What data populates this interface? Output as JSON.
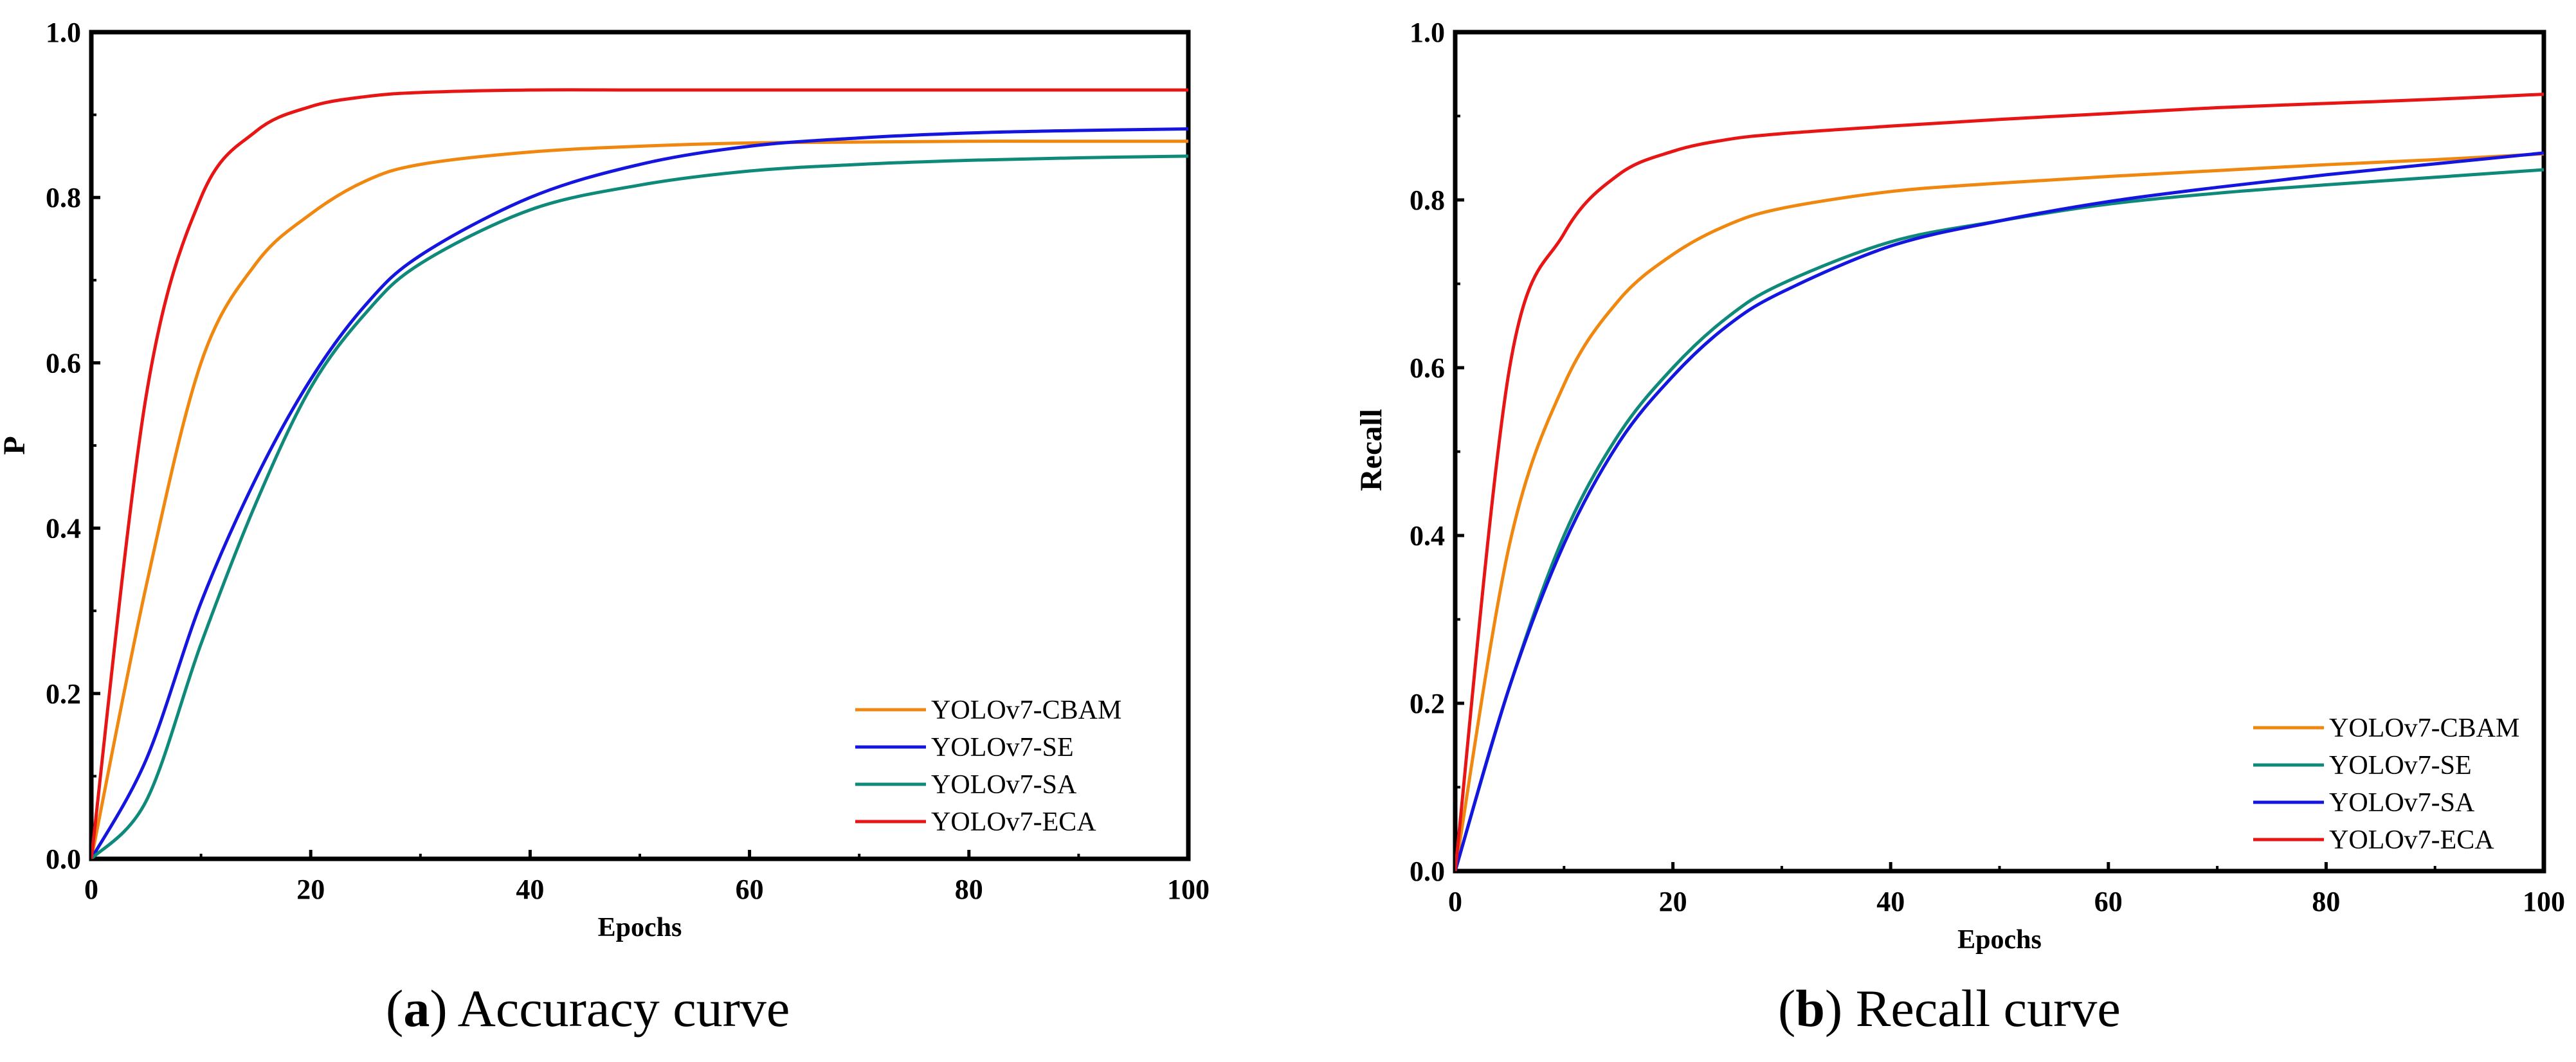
{
  "charts": [
    {
      "id": "a",
      "caption_letter": "a",
      "caption_text": "Accuracy curve",
      "ylabel": "P",
      "xlabel": "Epochs",
      "xlim": [
        0,
        100
      ],
      "ylim": [
        0,
        1.0
      ],
      "xticks": [
        "0",
        "20",
        "40",
        "60",
        "80",
        "100"
      ],
      "yticks": [
        "0.0",
        "0.2",
        "0.4",
        "0.6",
        "0.8",
        "1.0"
      ],
      "legend_position": "bottom-right"
    },
    {
      "id": "b",
      "caption_letter": "b",
      "caption_text": "Recall curve",
      "ylabel": "Recall",
      "xlabel": "Epochs",
      "xlim": [
        0,
        100
      ],
      "ylim": [
        0,
        1.0
      ],
      "xticks": [
        "0",
        "20",
        "40",
        "60",
        "80",
        "100"
      ],
      "yticks": [
        "0.0",
        "0.2",
        "0.4",
        "0.6",
        "0.8",
        "1.0"
      ],
      "legend_position": "bottom-right"
    }
  ],
  "chart_data": [
    {
      "type": "line",
      "title": "Accuracy curve",
      "xlabel": "Epochs",
      "ylabel": "P",
      "xlim": [
        0,
        100
      ],
      "ylim": [
        0,
        1.0
      ],
      "x": [
        0,
        5,
        10,
        15,
        20,
        25,
        30,
        40,
        50,
        60,
        70,
        80,
        90,
        100
      ],
      "series": [
        {
          "name": "YOLOv7-CBAM",
          "color": "#f0870f",
          "values": [
            0.0,
            0.33,
            0.6,
            0.72,
            0.78,
            0.82,
            0.84,
            0.855,
            0.862,
            0.866,
            0.867,
            0.868,
            0.868,
            0.868
          ]
        },
        {
          "name": "YOLOv7-SE",
          "color": "#1515e0",
          "values": [
            0.0,
            0.12,
            0.31,
            0.46,
            0.58,
            0.67,
            0.73,
            0.8,
            0.84,
            0.862,
            0.872,
            0.878,
            0.881,
            0.883
          ]
        },
        {
          "name": "YOLOv7-SA",
          "color": "#0f8a7a",
          "values": [
            0.0,
            0.07,
            0.26,
            0.43,
            0.57,
            0.66,
            0.72,
            0.785,
            0.815,
            0.832,
            0.84,
            0.845,
            0.848,
            0.85
          ]
        },
        {
          "name": "YOLOv7-ECA",
          "color": "#e81515",
          "values": [
            0.0,
            0.56,
            0.8,
            0.88,
            0.91,
            0.922,
            0.927,
            0.93,
            0.93,
            0.93,
            0.93,
            0.93,
            0.93,
            0.93
          ]
        }
      ]
    },
    {
      "type": "line",
      "title": "Recall curve",
      "xlabel": "Epochs",
      "ylabel": "Recall",
      "xlim": [
        0,
        100
      ],
      "ylim": [
        0,
        1.0
      ],
      "x": [
        0,
        5,
        10,
        15,
        20,
        25,
        30,
        40,
        50,
        60,
        70,
        80,
        90,
        100
      ],
      "series": [
        {
          "name": "YOLOv7-CBAM",
          "color": "#f0870f",
          "values": [
            0.0,
            0.39,
            0.58,
            0.68,
            0.735,
            0.77,
            0.79,
            0.81,
            0.82,
            0.828,
            0.835,
            0.842,
            0.848,
            0.855
          ]
        },
        {
          "name": "YOLOv7-SE",
          "color": "#0f8a7a",
          "values": [
            0.0,
            0.22,
            0.4,
            0.52,
            0.6,
            0.66,
            0.7,
            0.75,
            0.775,
            0.795,
            0.808,
            0.818,
            0.827,
            0.836
          ]
        },
        {
          "name": "YOLOv7-SA",
          "color": "#1515e0",
          "values": [
            0.0,
            0.22,
            0.39,
            0.51,
            0.59,
            0.65,
            0.69,
            0.745,
            0.775,
            0.798,
            0.815,
            0.83,
            0.843,
            0.856
          ]
        },
        {
          "name": "YOLOv7-ECA",
          "color": "#e81515",
          "values": [
            0.0,
            0.6,
            0.76,
            0.83,
            0.858,
            0.872,
            0.879,
            0.888,
            0.896,
            0.903,
            0.91,
            0.915,
            0.92,
            0.926
          ]
        }
      ]
    }
  ]
}
